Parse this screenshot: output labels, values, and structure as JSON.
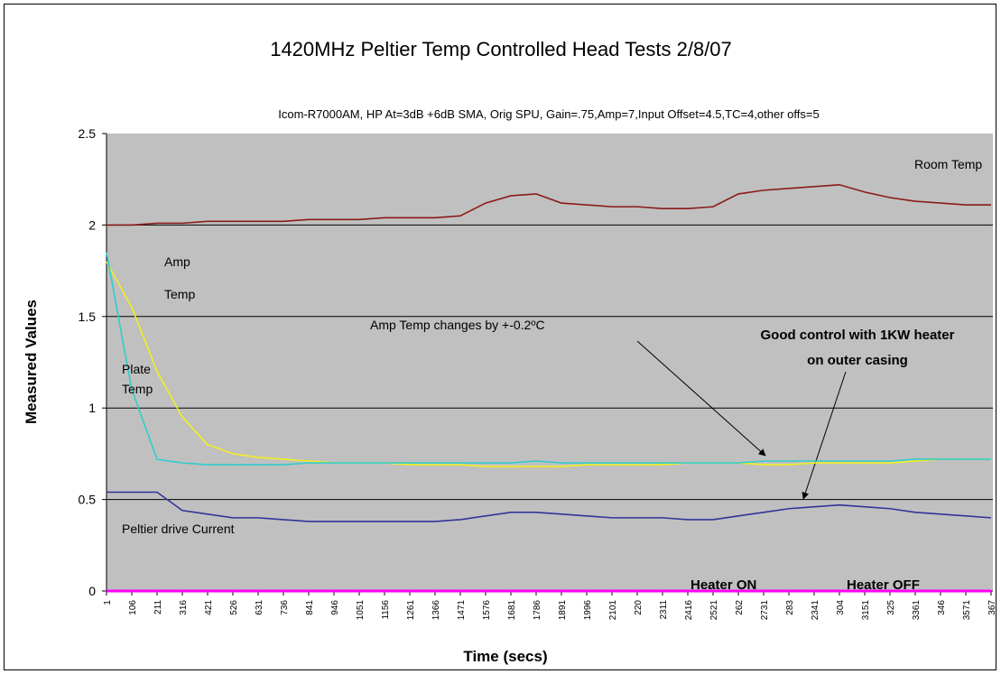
{
  "chart_data": {
    "type": "line",
    "title": "1420MHz Peltier Temp Controlled Head Tests 2/8/07",
    "subtitle": "Icom-R7000AM, HP At=3dB +6dB SMA, Orig SPU, Gain=.75,Amp=7,Input Offset=4.5,TC=4,other offs=5",
    "x_label": "Time (secs)",
    "y_label": "Measured Values",
    "categories": [
      "1",
      "106",
      "211",
      "316",
      "421",
      "526",
      "631",
      "736",
      "841",
      "946",
      "1051",
      "1156",
      "1261",
      "1366",
      "1471",
      "1576",
      "1681",
      "1786",
      "1891",
      "1996",
      "2101",
      "220",
      "2311",
      "2416",
      "2521",
      "262",
      "2731",
      "283",
      "2341",
      "304",
      "3151",
      "325",
      "3361",
      "346",
      "3571",
      "367"
    ],
    "ylim": [
      0,
      2.5
    ],
    "yticks": [
      0,
      0.5,
      1,
      1.5,
      2,
      2.5
    ],
    "grid": true,
    "series": [
      {
        "name": "Room Temp",
        "color": "#8b1a1a",
        "values": [
          2.0,
          2.0,
          2.01,
          2.01,
          2.02,
          2.02,
          2.02,
          2.02,
          2.03,
          2.03,
          2.03,
          2.04,
          2.04,
          2.04,
          2.05,
          2.12,
          2.16,
          2.17,
          2.12,
          2.11,
          2.1,
          2.1,
          2.09,
          2.09,
          2.1,
          2.17,
          2.19,
          2.2,
          2.21,
          2.22,
          2.18,
          2.15,
          2.13,
          2.12,
          2.11,
          2.11
        ]
      },
      {
        "name": "Amp Temp",
        "color": "#f0f020",
        "values": [
          1.8,
          1.55,
          1.2,
          0.95,
          0.8,
          0.75,
          0.73,
          0.72,
          0.71,
          0.7,
          0.7,
          0.7,
          0.69,
          0.69,
          0.69,
          0.68,
          0.68,
          0.68,
          0.68,
          0.69,
          0.69,
          0.69,
          0.69,
          0.7,
          0.7,
          0.7,
          0.69,
          0.69,
          0.7,
          0.7,
          0.7,
          0.7,
          0.71,
          0.72,
          0.72,
          0.72
        ]
      },
      {
        "name": "Plate Temp",
        "color": "#33cccc",
        "values": [
          1.85,
          1.1,
          0.72,
          0.7,
          0.69,
          0.69,
          0.69,
          0.69,
          0.7,
          0.7,
          0.7,
          0.7,
          0.7,
          0.7,
          0.7,
          0.7,
          0.7,
          0.71,
          0.7,
          0.7,
          0.7,
          0.7,
          0.7,
          0.7,
          0.7,
          0.7,
          0.71,
          0.71,
          0.71,
          0.71,
          0.71,
          0.71,
          0.72,
          0.72,
          0.72,
          0.72
        ]
      },
      {
        "name": "Peltier drive Current",
        "color": "#333399",
        "values": [
          0.54,
          0.54,
          0.54,
          0.44,
          0.42,
          0.4,
          0.4,
          0.39,
          0.38,
          0.38,
          0.38,
          0.38,
          0.38,
          0.38,
          0.39,
          0.41,
          0.43,
          0.43,
          0.42,
          0.41,
          0.4,
          0.4,
          0.4,
          0.39,
          0.39,
          0.41,
          0.43,
          0.45,
          0.46,
          0.47,
          0.46,
          0.45,
          0.43,
          0.42,
          0.41,
          0.4
        ]
      },
      {
        "color": "#ff00ff",
        "values": [
          0,
          0,
          0,
          0,
          0,
          0,
          0,
          0,
          0,
          0,
          0,
          0,
          0,
          0,
          0,
          0,
          0,
          0,
          0,
          0,
          0,
          0,
          0,
          0,
          0,
          0,
          0,
          0,
          0,
          0,
          0,
          0,
          0,
          0,
          0,
          0
        ]
      }
    ],
    "annotations": [
      "Amp Temp changes by +-0.2ºC",
      "Good control with 1KW heater on outer casing",
      "Heater ON",
      "Heater OFF"
    ]
  }
}
